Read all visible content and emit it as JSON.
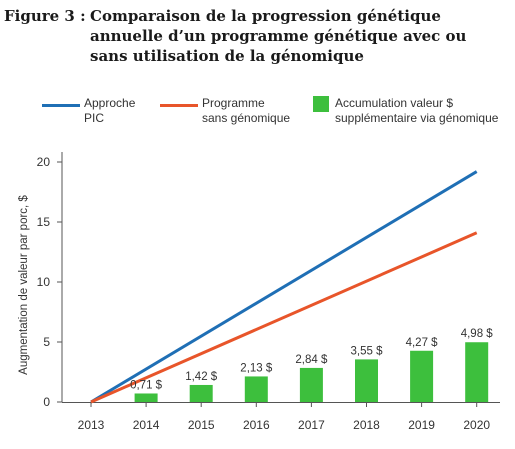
{
  "figure": {
    "label": "Figure 3 :",
    "title_lines": [
      "Comparaison de la progression génétique",
      "annuelle d’un programme génétique avec ou",
      "sans utilisation de la génomique"
    ]
  },
  "legend": {
    "items": [
      {
        "type": "line",
        "color": "#1f6fb5",
        "lines": [
          "Approche",
          "PIC"
        ]
      },
      {
        "type": "line",
        "color": "#e8552a",
        "lines": [
          "Programme",
          "sans génomique"
        ]
      },
      {
        "type": "box",
        "color": "#3dbf3d",
        "lines": [
          "Accumulation valeur $",
          "supplémentaire via génomique"
        ]
      }
    ]
  },
  "chart_data": {
    "type": "bar+line",
    "ylabel": "Augmentation de valeur par porc, $",
    "xlabel": "",
    "ylim": [
      0,
      20
    ],
    "yticks": [
      0,
      5,
      10,
      15,
      20
    ],
    "categories": [
      "2013",
      "2014",
      "2015",
      "2016",
      "2017",
      "2018",
      "2019",
      "2020"
    ],
    "bars": {
      "color": "#3dbf3d",
      "values": [
        null,
        0.71,
        1.42,
        2.13,
        2.84,
        3.55,
        4.27,
        4.98
      ],
      "labels": [
        "",
        "0,71 $",
        "1,42 $",
        "2,13 $",
        "2,84 $",
        "3,55 $",
        "4,27 $",
        "4,98 $"
      ]
    },
    "series": [
      {
        "color": "#1f6fb5",
        "x": [
          "2013",
          "2020"
        ],
        "values": [
          0,
          19.2
        ]
      },
      {
        "color": "#e8552a",
        "x": [
          "2013",
          "2020"
        ],
        "values": [
          0,
          14.1
        ]
      }
    ],
    "grid": false
  }
}
